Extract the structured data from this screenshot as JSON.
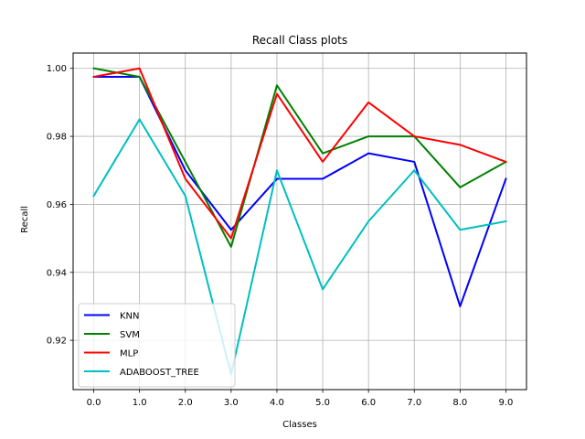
{
  "chart_data": {
    "type": "line",
    "title": "Recall Class plots",
    "xlabel": "Classes",
    "ylabel": "Recall",
    "x": [
      0.0,
      1.0,
      2.0,
      3.0,
      4.0,
      5.0,
      6.0,
      7.0,
      8.0,
      9.0
    ],
    "x_tick_labels": [
      "0.0",
      "1.0",
      "2.0",
      "3.0",
      "4.0",
      "5.0",
      "6.0",
      "7.0",
      "8.0",
      "9.0"
    ],
    "y_ticks": [
      0.92,
      0.94,
      0.96,
      0.98,
      1.0
    ],
    "y_tick_labels": [
      "0.92",
      "0.94",
      "0.96",
      "0.98",
      "1.00"
    ],
    "xlim": [
      -0.45,
      9.45
    ],
    "ylim": [
      0.9055,
      1.0045
    ],
    "grid": true,
    "legend_position": "lower-left",
    "series": [
      {
        "name": "KNN",
        "color": "#0000ff",
        "values": [
          0.9975,
          0.9975,
          0.97,
          0.9525,
          0.9675,
          0.9675,
          0.975,
          0.9725,
          0.93,
          0.9675
        ]
      },
      {
        "name": "SVM",
        "color": "#008000",
        "values": [
          1.0,
          0.9975,
          0.9725,
          0.9475,
          0.995,
          0.975,
          0.98,
          0.98,
          0.965,
          0.9725
        ]
      },
      {
        "name": "MLP",
        "color": "#ff0000",
        "values": [
          0.9975,
          1.0,
          0.9675,
          0.95,
          0.9925,
          0.9725,
          0.99,
          0.98,
          0.9775,
          0.9725
        ]
      },
      {
        "name": "ADABOOST_TREE",
        "color": "#00bfbf",
        "values": [
          0.9625,
          0.985,
          0.9625,
          0.91,
          0.97,
          0.935,
          0.955,
          0.97,
          0.9525,
          0.955
        ]
      }
    ]
  }
}
